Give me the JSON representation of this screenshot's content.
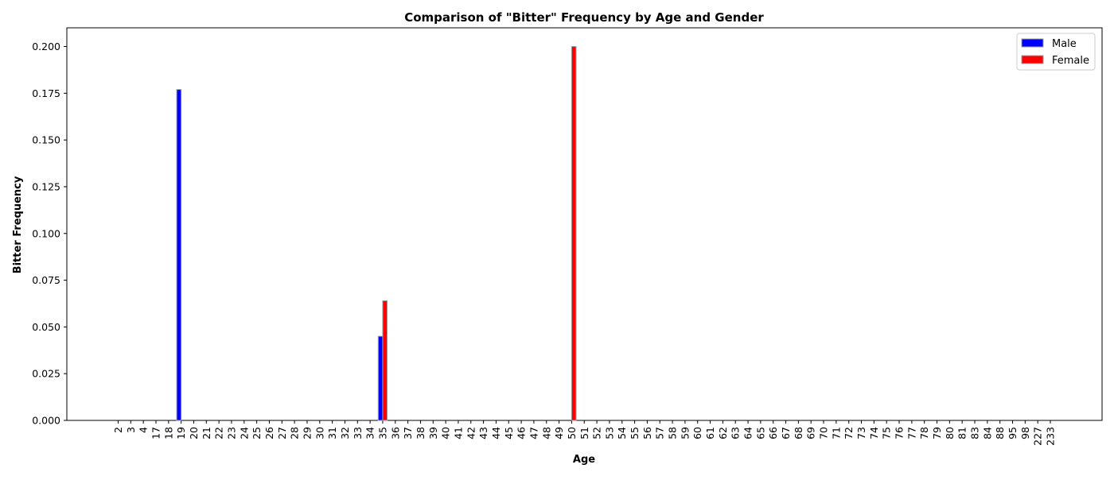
{
  "chart_data": {
    "type": "bar",
    "title": "Comparison of \"Bitter\" Frequency by Age and Gender",
    "xlabel": "Age",
    "ylabel": "Bitter Frequency",
    "ylim": [
      0,
      0.21
    ],
    "yticks": [
      "0.000",
      "0.025",
      "0.050",
      "0.075",
      "0.100",
      "0.125",
      "0.150",
      "0.175",
      "0.200"
    ],
    "grid": false,
    "legend_position": "top-right",
    "categories": [
      "2",
      "3",
      "4",
      "17",
      "18",
      "19",
      "20",
      "21",
      "22",
      "23",
      "24",
      "25",
      "26",
      "27",
      "28",
      "29",
      "30",
      "31",
      "32",
      "33",
      "34",
      "35",
      "36",
      "37",
      "38",
      "39",
      "40",
      "41",
      "42",
      "43",
      "44",
      "45",
      "46",
      "47",
      "48",
      "49",
      "50",
      "51",
      "52",
      "53",
      "54",
      "55",
      "56",
      "57",
      "58",
      "59",
      "60",
      "61",
      "62",
      "63",
      "64",
      "65",
      "66",
      "67",
      "68",
      "69",
      "70",
      "71",
      "72",
      "73",
      "74",
      "75",
      "76",
      "77",
      "78",
      "79",
      "80",
      "81",
      "83",
      "84",
      "88",
      "95",
      "98",
      "227",
      "233"
    ],
    "series": [
      {
        "name": "Male",
        "color": "#0000ff",
        "values": [
          0,
          0,
          0,
          0,
          0,
          0.177,
          0,
          0,
          0,
          0,
          0,
          0,
          0,
          0,
          0,
          0,
          0,
          0,
          0,
          0,
          0,
          0.045,
          0,
          0,
          0,
          0,
          0,
          0,
          0,
          0,
          0,
          0,
          0,
          0,
          0,
          0,
          0,
          0,
          0,
          0,
          0,
          0,
          0,
          0,
          0,
          0,
          0,
          0,
          0,
          0,
          0,
          0,
          0,
          0,
          0,
          0,
          0,
          0,
          0,
          0,
          0,
          0,
          0,
          0,
          0,
          0,
          0,
          0,
          0,
          0,
          0,
          0,
          0,
          0,
          0
        ]
      },
      {
        "name": "Female",
        "color": "#ff0000",
        "values": [
          0,
          0,
          0,
          0,
          0,
          0,
          0,
          0,
          0,
          0,
          0,
          0,
          0,
          0,
          0,
          0,
          0,
          0,
          0,
          0,
          0,
          0.064,
          0,
          0,
          0,
          0,
          0,
          0,
          0,
          0,
          0,
          0,
          0,
          0,
          0,
          0,
          0.2,
          0,
          0,
          0,
          0,
          0,
          0,
          0,
          0,
          0,
          0,
          0,
          0,
          0,
          0,
          0,
          0,
          0,
          0,
          0,
          0,
          0,
          0,
          0,
          0,
          0,
          0,
          0,
          0,
          0,
          0,
          0,
          0,
          0,
          0,
          0,
          0,
          0,
          0
        ]
      }
    ]
  }
}
